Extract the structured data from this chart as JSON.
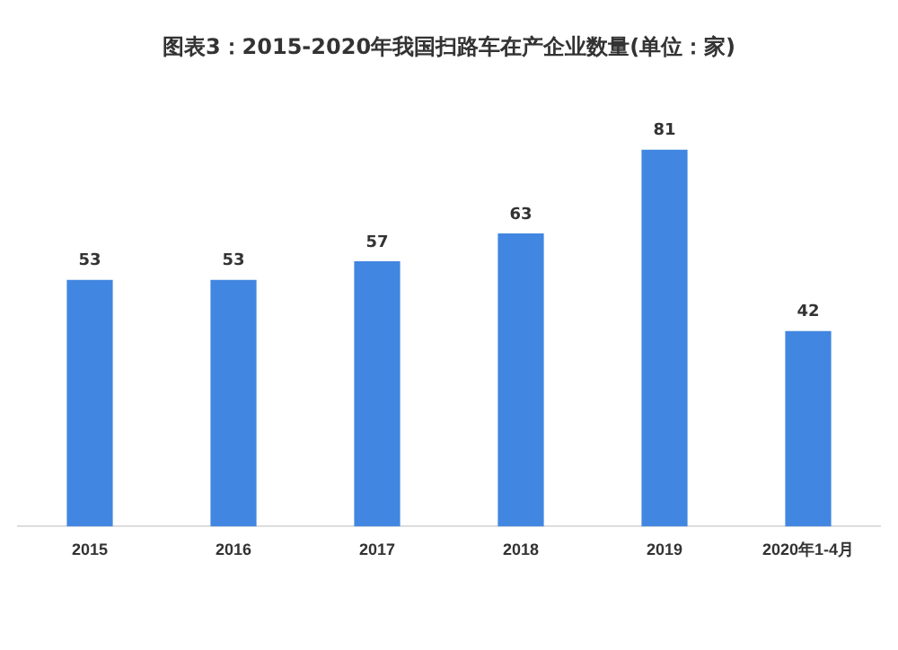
{
  "chart_data": {
    "type": "bar",
    "title": "图表3：2015-2020年我国扫路车在产企业数量(单位：家)",
    "categories": [
      "2015",
      "2016",
      "2017",
      "2018",
      "2019",
      "2020年1-4月"
    ],
    "values": [
      53,
      53,
      57,
      63,
      81,
      42
    ],
    "color": "#4186e0",
    "data_labels": true,
    "grid": false,
    "legend": false
  }
}
